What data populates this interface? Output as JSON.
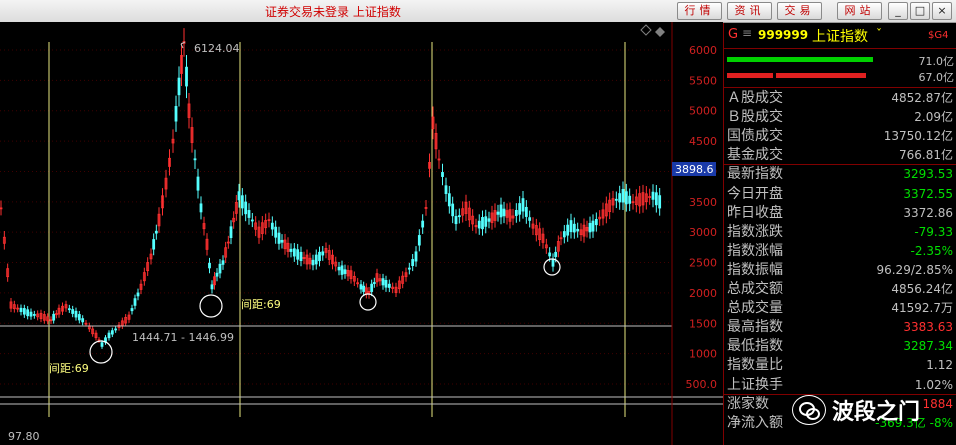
{
  "window": {
    "title": "证券交易未登录  上证指数",
    "buttons": [
      "行情",
      "资讯",
      "交易",
      "网站"
    ]
  },
  "chart": {
    "y_ticks": [
      "6000",
      "5500",
      "5000",
      "4500",
      "4000",
      "3500",
      "3000",
      "2500",
      "2000",
      "1500",
      "1000",
      "500.0"
    ],
    "current_value": "3898.6",
    "peak_label": "6124.04",
    "low_label": "1444.71 - 1446.99",
    "interval_labels": [
      "间距:69",
      "间距:69"
    ],
    "bottom_label": "97.80"
  },
  "chart_data": {
    "type": "candlestick",
    "y_ticks": [
      500,
      1000,
      1500,
      2000,
      2500,
      3000,
      3500,
      4000,
      4500,
      5000,
      5500,
      6000
    ],
    "annotations": {
      "high": 6124.04,
      "low_range": [
        1444.71,
        1446.99
      ],
      "current": 3898.6,
      "bottom": 97.8
    }
  },
  "panel": {
    "code_prefix": "G",
    "code": "999999",
    "name": "上证指数",
    "tag": "$G4",
    "bar_values": [
      "71.0亿",
      "67.0亿"
    ],
    "rows": [
      {
        "label": "Ａ股成交",
        "value": "4852.87亿",
        "color": "#c0c0c0"
      },
      {
        "label": "Ｂ股成交",
        "value": "2.09亿",
        "color": "#c0c0c0"
      },
      {
        "label": "国债成交",
        "value": "13750.12亿",
        "color": "#c0c0c0"
      },
      {
        "label": "基金成交",
        "value": "766.81亿",
        "color": "#c0c0c0"
      },
      {
        "label": "最新指数",
        "value": "3293.53",
        "color": "#00e000"
      },
      {
        "label": "今日开盘",
        "value": "3372.55",
        "color": "#00e000"
      },
      {
        "label": "昨日收盘",
        "value": "3372.86",
        "color": "#c0c0c0"
      },
      {
        "label": "指数涨跌",
        "value": "-79.33",
        "color": "#00e000"
      },
      {
        "label": "指数涨幅",
        "value": "-2.35%",
        "color": "#00e000"
      },
      {
        "label": "指数振幅",
        "value": "96.29/2.85%",
        "color": "#c0c0c0"
      },
      {
        "label": "总成交额",
        "value": "4856.24亿",
        "color": "#c0c0c0"
      },
      {
        "label": "总成交量",
        "value": "41592.7万",
        "color": "#c0c0c0"
      },
      {
        "label": "最高指数",
        "value": "3383.63",
        "color": "#ff3030"
      },
      {
        "label": "最低指数",
        "value": "3287.34",
        "color": "#00e000"
      },
      {
        "label": "指数量比",
        "value": "1.12",
        "color": "#c0c0c0"
      },
      {
        "label": "上证换手",
        "value": "1.02%",
        "color": "#c0c0c0"
      },
      {
        "label": "涨家数",
        "value": "1884",
        "color": "#ff3030"
      },
      {
        "label": "净流入额",
        "value": "-369.3亿",
        "extra": "-8%",
        "color": "#00e000"
      }
    ]
  },
  "watermark": {
    "text": "波段之门"
  }
}
